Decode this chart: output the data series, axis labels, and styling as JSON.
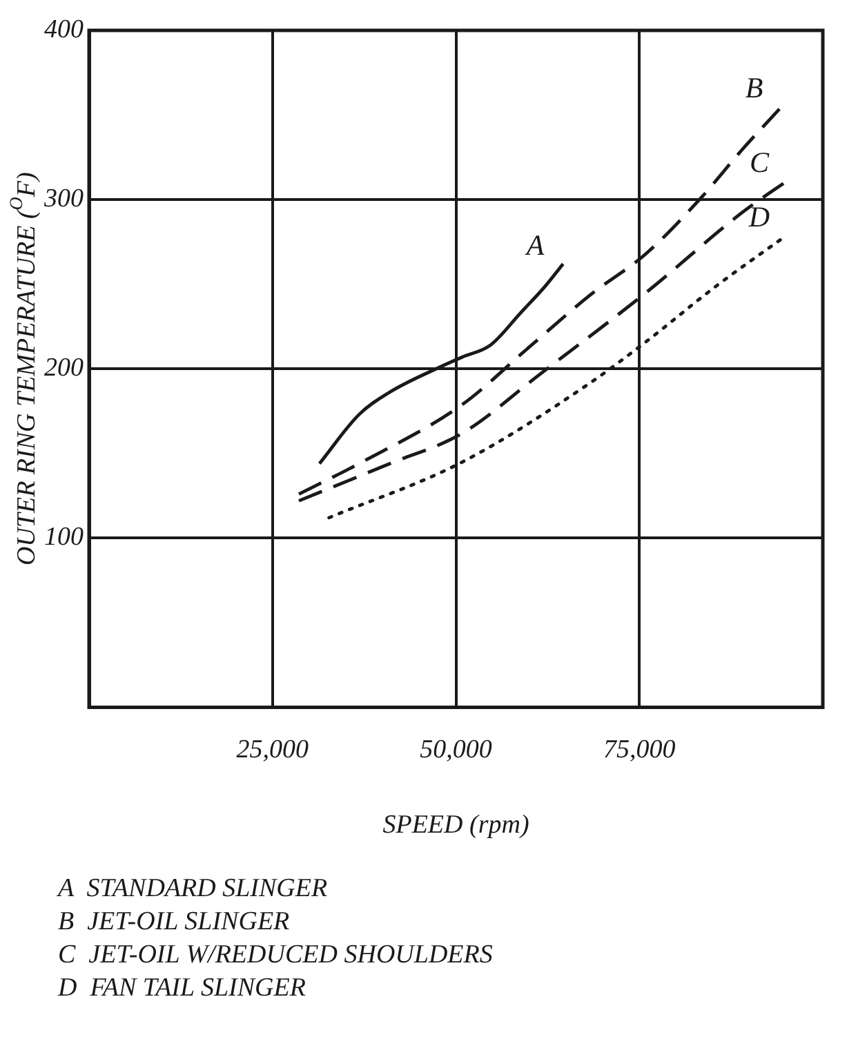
{
  "chart_data": {
    "type": "line",
    "xlabel": "SPEED (rpm)",
    "ylabel": "OUTER RING TEMPERATURE ($^{O}$F)",
    "xlim": [
      0,
      100000
    ],
    "ylim": [
      0,
      400
    ],
    "xticks": [
      {
        "value": 0,
        "label": null
      },
      {
        "value": 25000,
        "label": "25,000"
      },
      {
        "value": 50000,
        "label": "50,000"
      },
      {
        "value": 75000,
        "label": "75,000"
      },
      {
        "value": 100000,
        "label": null
      }
    ],
    "yticks": [
      {
        "value": 0,
        "label": null
      },
      100,
      200,
      300,
      400
    ],
    "grid": true,
    "legend": false,
    "marker": "none",
    "series": [
      {
        "name": "A",
        "color": "#1a1a1a",
        "line_style": "solid",
        "x": [
          31400,
          36800,
          40900,
          47800,
          50900,
          54700,
          58800,
          62200,
          64600
        ],
        "values": [
          144,
          173,
          186,
          201,
          207,
          214,
          233,
          249,
          262
        ]
      },
      {
        "name": "B",
        "color": "#1a1a1a",
        "line_style": "dashed",
        "x": [
          28600,
          36800,
          50900,
          59500,
          68400,
          75900,
          83400,
          88900,
          94400
        ],
        "values": [
          126,
          144,
          179,
          211,
          244,
          268,
          301,
          329,
          355
        ]
      },
      {
        "name": "C",
        "color": "#1a1a1a",
        "line_style": "dashed",
        "x": [
          28600,
          41000,
          50900,
          61500,
          75900,
          88900,
          95100
        ],
        "values": [
          122,
          144,
          162,
          197,
          245,
          292,
          311
        ]
      },
      {
        "name": "D",
        "color": "#1a1a1a",
        "line_style": "dotted",
        "x": [
          32700,
          50900,
          68400,
          75900,
          85500,
          95100
        ],
        "values": [
          112,
          145,
          192,
          216,
          249,
          279
        ]
      }
    ],
    "annotations": [
      "A  STANDARD SLINGER",
      "B  JET-OIL SLINGER",
      "C  JET-OIL W/REDUCED SHOULDERS",
      "D  FAN TAIL SLINGER"
    ]
  }
}
